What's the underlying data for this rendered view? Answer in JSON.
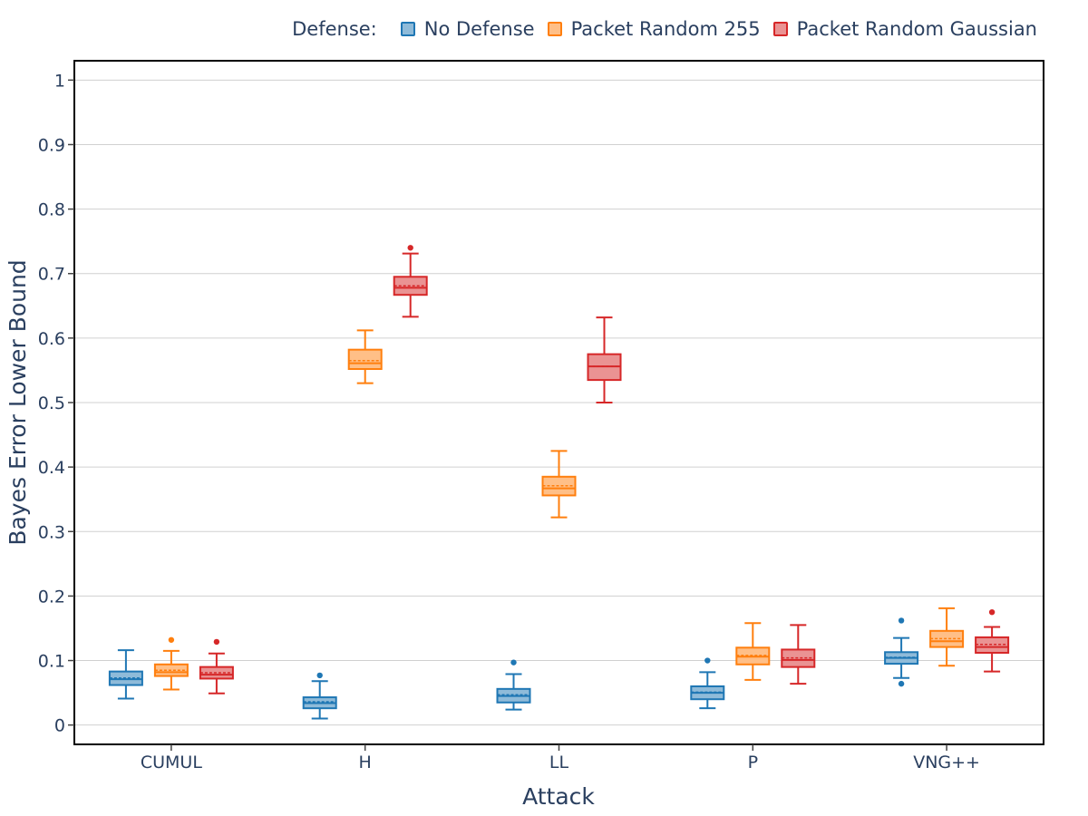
{
  "legend": {
    "title": "Defense:",
    "items": [
      {
        "label": "No Defense",
        "color": "#1f77b4",
        "fill": "#8fbbd9"
      },
      {
        "label": "Packet Random 255",
        "color": "#ff7f0e",
        "fill": "#ffbf87"
      },
      {
        "label": "Packet Random Gaussian",
        "color": "#d62728",
        "fill": "#ea9393"
      }
    ]
  },
  "chart_data": {
    "type": "box",
    "xlabel": "Attack",
    "ylabel": "Bayes Error Lower Bound",
    "categories": [
      "CUMUL",
      "H",
      "LL",
      "P",
      "VNG++"
    ],
    "ylim": [
      -0.03,
      1.03
    ],
    "yticks": [
      0,
      0.1,
      0.2,
      0.3,
      0.4,
      0.5,
      0.6,
      0.7,
      0.8,
      0.9,
      1
    ],
    "ytick_labels": [
      "0",
      "0.1",
      "0.2",
      "0.3",
      "0.4",
      "0.5",
      "0.6",
      "0.7",
      "0.8",
      "0.9",
      "1"
    ],
    "grid": true,
    "legend_position": "top-right",
    "series": [
      {
        "name": "No Defense",
        "boxes": [
          {
            "category": "CUMUL",
            "min": 0.041,
            "q1": 0.062,
            "median": 0.071,
            "mean": 0.073,
            "q3": 0.083,
            "max": 0.116,
            "outliers": []
          },
          {
            "category": "H",
            "min": 0.01,
            "q1": 0.026,
            "median": 0.034,
            "mean": 0.036,
            "q3": 0.043,
            "max": 0.068,
            "outliers": [
              0.077
            ]
          },
          {
            "category": "LL",
            "min": 0.024,
            "q1": 0.035,
            "median": 0.045,
            "mean": 0.047,
            "q3": 0.056,
            "max": 0.079,
            "outliers": [
              0.097
            ]
          },
          {
            "category": "P",
            "min": 0.026,
            "q1": 0.04,
            "median": 0.05,
            "mean": 0.051,
            "q3": 0.06,
            "max": 0.082,
            "outliers": [
              0.1
            ]
          },
          {
            "category": "VNG++",
            "min": 0.073,
            "q1": 0.095,
            "median": 0.104,
            "mean": 0.105,
            "q3": 0.113,
            "max": 0.135,
            "outliers": [
              0.162,
              0.064
            ]
          }
        ]
      },
      {
        "name": "Packet Random 255",
        "boxes": [
          {
            "category": "CUMUL",
            "min": 0.055,
            "q1": 0.076,
            "median": 0.082,
            "mean": 0.085,
            "q3": 0.094,
            "max": 0.115,
            "outliers": [
              0.132
            ]
          },
          {
            "category": "H",
            "min": 0.53,
            "q1": 0.552,
            "median": 0.561,
            "mean": 0.565,
            "q3": 0.582,
            "max": 0.612,
            "outliers": []
          },
          {
            "category": "LL",
            "min": 0.322,
            "q1": 0.356,
            "median": 0.367,
            "mean": 0.371,
            "q3": 0.385,
            "max": 0.425,
            "outliers": []
          },
          {
            "category": "P",
            "min": 0.07,
            "q1": 0.094,
            "median": 0.106,
            "mean": 0.108,
            "q3": 0.12,
            "max": 0.158,
            "outliers": []
          },
          {
            "category": "VNG++",
            "min": 0.092,
            "q1": 0.121,
            "median": 0.13,
            "mean": 0.134,
            "q3": 0.146,
            "max": 0.181,
            "outliers": []
          }
        ]
      },
      {
        "name": "Packet Random Gaussian",
        "boxes": [
          {
            "category": "CUMUL",
            "min": 0.049,
            "q1": 0.072,
            "median": 0.078,
            "mean": 0.081,
            "q3": 0.09,
            "max": 0.111,
            "outliers": [
              0.129
            ]
          },
          {
            "category": "H",
            "min": 0.633,
            "q1": 0.667,
            "median": 0.678,
            "mean": 0.681,
            "q3": 0.695,
            "max": 0.731,
            "outliers": [
              0.74
            ]
          },
          {
            "category": "LL",
            "min": 0.5,
            "q1": 0.535,
            "median": 0.556,
            "mean": 0.556,
            "q3": 0.575,
            "max": 0.632,
            "outliers": []
          },
          {
            "category": "P",
            "min": 0.064,
            "q1": 0.09,
            "median": 0.101,
            "mean": 0.104,
            "q3": 0.117,
            "max": 0.155,
            "outliers": []
          },
          {
            "category": "VNG++",
            "min": 0.083,
            "q1": 0.112,
            "median": 0.121,
            "mean": 0.125,
            "q3": 0.136,
            "max": 0.152,
            "outliers": [
              0.175
            ]
          }
        ]
      }
    ]
  }
}
